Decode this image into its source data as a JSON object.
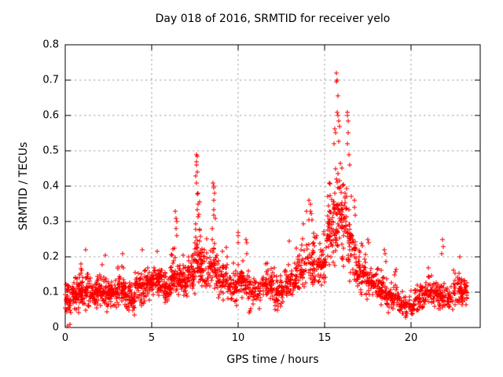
{
  "chart_data": {
    "type": "scatter",
    "title": "Day 018 of 2016, SRMTID for receiver yelo",
    "xlabel": "GPS time / hours",
    "ylabel": "SRMTID / TECUs",
    "xlim": [
      0,
      24
    ],
    "ylim": [
      0,
      0.8
    ],
    "xticks": [
      0,
      5,
      10,
      15,
      20
    ],
    "yticks": [
      0,
      0.1,
      0.2,
      0.3,
      0.4,
      0.5,
      0.6,
      0.7,
      0.8
    ],
    "xtick_labels": [
      "0",
      "5",
      "10",
      "15",
      "20"
    ],
    "ytick_labels": [
      "0",
      "0.1",
      "0.2",
      "0.3",
      "0.4",
      "0.5",
      "0.6",
      "0.7",
      "0.8"
    ],
    "grid": "dashed",
    "legend": "none",
    "marker": {
      "shape": "plus",
      "size": 7
    },
    "marker_color": "#ff0000",
    "grid_color": "#a9a9a9",
    "frame_color": "#000000",
    "seed": 2016018,
    "envelope_bins": [
      [
        0.0,
        0.3,
        30,
        0.03,
        0.08,
        0.13
      ],
      [
        0.3,
        0.8,
        55,
        0.03,
        0.085,
        0.16
      ],
      [
        0.8,
        1.3,
        60,
        0.04,
        0.1,
        0.21
      ],
      [
        1.3,
        1.8,
        55,
        0.04,
        0.09,
        0.18
      ],
      [
        1.8,
        2.4,
        65,
        0.05,
        0.1,
        0.2
      ],
      [
        2.4,
        3.0,
        60,
        0.04,
        0.09,
        0.16
      ],
      [
        3.0,
        3.5,
        55,
        0.05,
        0.1,
        0.21
      ],
      [
        3.5,
        4.0,
        50,
        0.03,
        0.08,
        0.15
      ],
      [
        4.0,
        4.6,
        60,
        0.05,
        0.11,
        0.21
      ],
      [
        4.6,
        5.1,
        55,
        0.07,
        0.12,
        0.2
      ],
      [
        5.1,
        5.6,
        55,
        0.08,
        0.13,
        0.22
      ],
      [
        5.6,
        6.1,
        55,
        0.06,
        0.11,
        0.18
      ],
      [
        6.1,
        6.6,
        55,
        0.08,
        0.13,
        0.3
      ],
      [
        6.6,
        7.1,
        55,
        0.08,
        0.13,
        0.24
      ],
      [
        7.1,
        7.5,
        45,
        0.09,
        0.15,
        0.28
      ],
      [
        7.5,
        7.8,
        40,
        0.1,
        0.2,
        0.44
      ],
      [
        7.8,
        8.3,
        50,
        0.09,
        0.16,
        0.3
      ],
      [
        8.3,
        8.8,
        50,
        0.09,
        0.16,
        0.37
      ],
      [
        8.8,
        9.4,
        55,
        0.07,
        0.13,
        0.25
      ],
      [
        9.4,
        10.0,
        55,
        0.06,
        0.11,
        0.2
      ],
      [
        10.0,
        10.6,
        55,
        0.08,
        0.13,
        0.23
      ],
      [
        10.6,
        11.3,
        60,
        0.04,
        0.09,
        0.16
      ],
      [
        11.3,
        12.1,
        70,
        0.07,
        0.12,
        0.2
      ],
      [
        12.1,
        12.7,
        55,
        0.04,
        0.09,
        0.17
      ],
      [
        12.7,
        13.3,
        55,
        0.07,
        0.12,
        0.27
      ],
      [
        13.3,
        13.9,
        55,
        0.09,
        0.15,
        0.3
      ],
      [
        13.9,
        14.5,
        55,
        0.1,
        0.18,
        0.37
      ],
      [
        14.5,
        15.1,
        55,
        0.1,
        0.17,
        0.3
      ],
      [
        15.1,
        15.55,
        55,
        0.12,
        0.25,
        0.52
      ],
      [
        15.55,
        15.95,
        50,
        0.15,
        0.3,
        0.66
      ],
      [
        15.95,
        16.35,
        50,
        0.14,
        0.28,
        0.58
      ],
      [
        16.35,
        16.8,
        50,
        0.12,
        0.22,
        0.45
      ],
      [
        16.8,
        17.4,
        55,
        0.09,
        0.15,
        0.27
      ],
      [
        17.4,
        18.0,
        55,
        0.07,
        0.12,
        0.21
      ],
      [
        18.0,
        18.6,
        55,
        0.06,
        0.1,
        0.22
      ],
      [
        18.6,
        19.3,
        60,
        0.04,
        0.08,
        0.17
      ],
      [
        19.3,
        20.2,
        70,
        0.02,
        0.06,
        0.12
      ],
      [
        20.2,
        20.9,
        60,
        0.04,
        0.08,
        0.16
      ],
      [
        20.9,
        21.6,
        60,
        0.06,
        0.1,
        0.18
      ],
      [
        21.6,
        22.3,
        60,
        0.04,
        0.08,
        0.15
      ],
      [
        22.3,
        23.0,
        60,
        0.05,
        0.1,
        0.19
      ],
      [
        23.0,
        23.25,
        25,
        0.06,
        0.1,
        0.16
      ]
    ],
    "spike_points": [
      [
        0.14,
        0.005
      ],
      [
        0.27,
        0.008
      ],
      [
        1.2,
        0.22
      ],
      [
        2.3,
        0.205
      ],
      [
        3.3,
        0.21
      ],
      [
        4.45,
        0.22
      ],
      [
        5.3,
        0.215
      ],
      [
        6.38,
        0.33
      ],
      [
        6.41,
        0.31
      ],
      [
        6.44,
        0.3
      ],
      [
        6.4,
        0.28
      ],
      [
        6.46,
        0.26
      ],
      [
        7.55,
        0.43
      ],
      [
        7.58,
        0.47
      ],
      [
        7.61,
        0.49
      ],
      [
        7.63,
        0.485
      ],
      [
        7.6,
        0.46
      ],
      [
        7.64,
        0.44
      ],
      [
        7.57,
        0.41
      ],
      [
        7.66,
        0.38
      ],
      [
        7.69,
        0.35
      ],
      [
        7.72,
        0.32
      ],
      [
        8.55,
        0.41
      ],
      [
        8.58,
        0.4
      ],
      [
        8.61,
        0.395
      ],
      [
        8.63,
        0.38
      ],
      [
        8.57,
        0.36
      ],
      [
        8.66,
        0.31
      ],
      [
        9.98,
        0.27
      ],
      [
        10.02,
        0.26
      ],
      [
        10.0,
        0.24
      ],
      [
        10.45,
        0.25
      ],
      [
        10.5,
        0.24
      ],
      [
        12.95,
        0.245
      ],
      [
        13.95,
        0.33
      ],
      [
        14.1,
        0.36
      ],
      [
        14.2,
        0.35
      ],
      [
        14.16,
        0.33
      ],
      [
        15.68,
        0.72
      ],
      [
        15.71,
        0.7
      ],
      [
        15.7,
        0.695
      ],
      [
        15.75,
        0.655
      ],
      [
        15.73,
        0.61
      ],
      [
        15.78,
        0.6
      ],
      [
        15.8,
        0.585
      ],
      [
        15.85,
        0.57
      ],
      [
        15.62,
        0.55
      ],
      [
        15.55,
        0.52
      ],
      [
        16.3,
        0.61
      ],
      [
        16.33,
        0.6
      ],
      [
        16.35,
        0.585
      ],
      [
        16.38,
        0.55
      ],
      [
        16.32,
        0.52
      ],
      [
        16.41,
        0.49
      ],
      [
        16.44,
        0.46
      ],
      [
        17.5,
        0.25
      ],
      [
        17.55,
        0.24
      ],
      [
        18.45,
        0.22
      ],
      [
        18.5,
        0.21
      ],
      [
        21.8,
        0.25
      ],
      [
        21.85,
        0.23
      ],
      [
        21.78,
        0.21
      ],
      [
        22.8,
        0.2
      ]
    ]
  }
}
